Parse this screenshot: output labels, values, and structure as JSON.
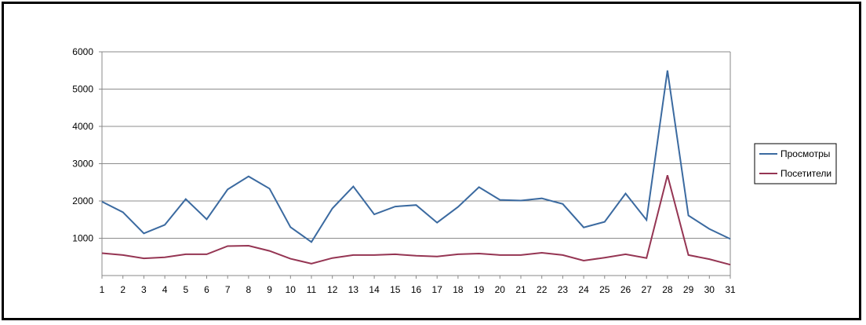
{
  "chart_data": {
    "type": "line",
    "title": "",
    "xlabel": "",
    "ylabel": "",
    "x": [
      1,
      2,
      3,
      4,
      5,
      6,
      7,
      8,
      9,
      10,
      11,
      12,
      13,
      14,
      15,
      16,
      17,
      18,
      19,
      20,
      21,
      22,
      23,
      24,
      25,
      26,
      27,
      28,
      29,
      30,
      31
    ],
    "ylim": [
      0,
      6000
    ],
    "yticks": [
      1000,
      2000,
      3000,
      4000,
      5000,
      6000
    ],
    "grid": true,
    "legend_position": "right",
    "series": [
      {
        "name": "Просмотры",
        "color": "#3b6aa0",
        "values": [
          1980,
          1700,
          1130,
          1360,
          2050,
          1510,
          2310,
          2660,
          2330,
          1300,
          900,
          1800,
          2390,
          1640,
          1850,
          1890,
          1420,
          1840,
          2370,
          2030,
          2010,
          2070,
          1920,
          1290,
          1440,
          2200,
          1490,
          5500,
          1610,
          1250,
          980
        ]
      },
      {
        "name": "Посетители",
        "color": "#953553",
        "values": [
          600,
          550,
          460,
          490,
          570,
          570,
          790,
          800,
          660,
          450,
          320,
          470,
          550,
          550,
          570,
          530,
          510,
          570,
          590,
          550,
          550,
          610,
          550,
          400,
          480,
          570,
          470,
          2690,
          550,
          440,
          290
        ]
      }
    ]
  }
}
